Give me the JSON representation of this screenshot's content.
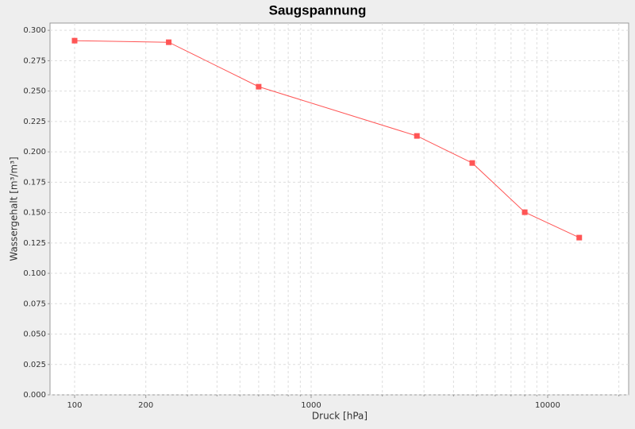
{
  "chart_data": {
    "type": "line",
    "title": "Saugspannung",
    "x_label": "Druck  [hPa]",
    "y_label": "Wassergehalt  [m³/m³]",
    "x": [
      100,
      250,
      600,
      2800,
      4800,
      8000,
      13600
    ],
    "series": [
      {
        "name": "Wassergehalt",
        "color": "#ff5555",
        "values": [
          0.2915,
          0.2902,
          0.2536,
          0.2131,
          0.1908,
          0.1503,
          0.1294
        ]
      }
    ],
    "xscale": "log",
    "xlim": [
      78.7,
      22000
    ],
    "xticks": [
      100,
      200,
      1000,
      10000
    ],
    "xminorticks": [
      300,
      400,
      500,
      600,
      700,
      800,
      900,
      2000,
      3000,
      4000,
      5000,
      6000,
      7000,
      8000,
      9000,
      20000
    ],
    "ylim": [
      0,
      0.306
    ],
    "yticks": [
      {
        "value": 0,
        "label": "0.000"
      },
      {
        "value": 0.025,
        "label": "0.025"
      },
      {
        "value": 0.05,
        "label": "0.050"
      },
      {
        "value": 0.075,
        "label": "0.075"
      },
      {
        "value": 0.1,
        "label": "0.100"
      },
      {
        "value": 0.125,
        "label": "0.125"
      },
      {
        "value": 0.15,
        "label": "0.150"
      },
      {
        "value": 0.175,
        "label": "0.175"
      },
      {
        "value": 0.2,
        "label": "0.200"
      },
      {
        "value": 0.225,
        "label": "0.225"
      },
      {
        "value": 0.25,
        "label": "0.250"
      },
      {
        "value": 0.275,
        "label": "0.275"
      },
      {
        "value": 0.3,
        "label": "0.300"
      }
    ],
    "grid": true
  }
}
